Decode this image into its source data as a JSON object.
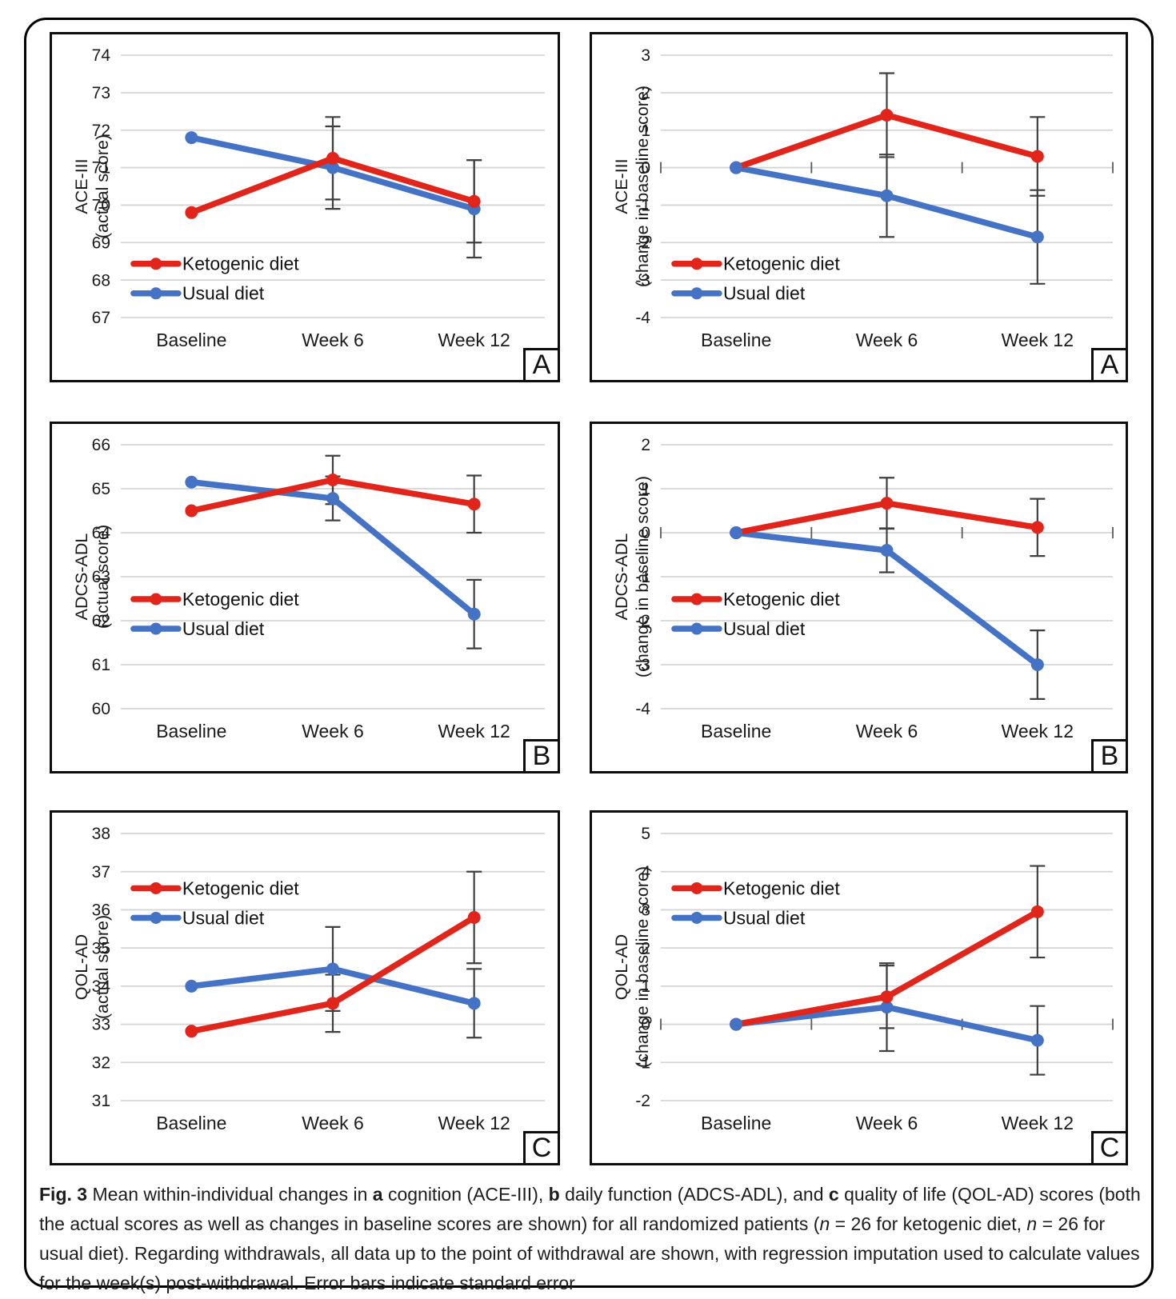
{
  "colors": {
    "ketogenic_red": "#e2251b",
    "usual_blue": "#4472c4",
    "gridline": "#d4d4d4",
    "error_bar": "#3f3f3f",
    "zero_tick": "#595959",
    "text": "#1a1a1a"
  },
  "caption": {
    "segments": [
      {
        "text": "Fig. 3",
        "style": "bold"
      },
      {
        "text": " Mean within-individual changes in ",
        "style": "regular"
      },
      {
        "text": "a",
        "style": "bold"
      },
      {
        "text": " cognition (ACE-III), ",
        "style": "regular"
      },
      {
        "text": "b",
        "style": "bold"
      },
      {
        "text": " daily function (ADCS-ADL), and ",
        "style": "regular"
      },
      {
        "text": "c",
        "style": "bold"
      },
      {
        "text": " quality of life (QOL-AD) scores (both the actual scores as well as changes in baseline scores are shown) for all randomized patients (",
        "style": "regular"
      },
      {
        "text": "n",
        "style": "italic"
      },
      {
        "text": " = 26 for ketogenic diet, ",
        "style": "regular"
      },
      {
        "text": "n",
        "style": "italic"
      },
      {
        "text": " = 26 for usual diet). Regarding withdrawals, all data up to the point of withdrawal are shown, with regression imputation used to calculate values for the week(s) post-withdrawal. Error bars indicate standard error",
        "style": "regular"
      }
    ]
  },
  "chart_data": [
    {
      "panel_label": "A",
      "type": "line",
      "ylabel_main": "ACE-III",
      "ylabel_sub": "(actual score)",
      "categories": [
        "Baseline",
        "Week 6",
        "Week 12"
      ],
      "ylim": [
        67,
        74
      ],
      "ytick_step": 1,
      "grid": true,
      "legend_position": "bottom-left",
      "zero_axis_ticks": false,
      "baseline_overlap": false,
      "series": [
        {
          "key": "ketogenic-diet",
          "name": "Ketogenic diet",
          "color_ref": "ketogenic_red",
          "values": [
            69.8,
            71.25,
            70.1
          ],
          "se": [
            null,
            1.1,
            1.1
          ]
        },
        {
          "key": "usual-diet",
          "name": "Usual diet",
          "color_ref": "usual_blue",
          "values": [
            71.8,
            71.0,
            69.9
          ],
          "se": [
            null,
            1.1,
            1.3
          ]
        }
      ]
    },
    {
      "panel_label": "A",
      "type": "line",
      "ylabel_main": "ACE-III",
      "ylabel_sub": "(change in baseline score)",
      "categories": [
        "Baseline",
        "Week 6",
        "Week 12"
      ],
      "ylim": [
        -4,
        3
      ],
      "ytick_step": 1,
      "grid": true,
      "legend_position": "bottom-left",
      "zero_axis_ticks": true,
      "baseline_overlap": true,
      "series": [
        {
          "key": "ketogenic-diet",
          "name": "Ketogenic diet",
          "color_ref": "ketogenic_red",
          "values": [
            0,
            1.4,
            0.3
          ],
          "se": [
            null,
            1.12,
            1.05
          ]
        },
        {
          "key": "usual-diet",
          "name": "Usual diet",
          "color_ref": "usual_blue",
          "values": [
            0,
            -0.75,
            -1.85
          ],
          "se": [
            null,
            1.1,
            1.25
          ]
        }
      ]
    },
    {
      "panel_label": "B",
      "type": "line",
      "ylabel_main": "ADCS-ADL",
      "ylabel_sub": "(actual score)",
      "categories": [
        "Baseline",
        "Week 6",
        "Week 12"
      ],
      "ylim": [
        60,
        66
      ],
      "ytick_step": 1,
      "grid": true,
      "legend_position": "middle-left",
      "zero_axis_ticks": false,
      "baseline_overlap": false,
      "series": [
        {
          "key": "ketogenic-diet",
          "name": "Ketogenic diet",
          "color_ref": "ketogenic_red",
          "values": [
            64.5,
            65.2,
            64.65
          ],
          "se": [
            null,
            0.55,
            0.65
          ]
        },
        {
          "key": "usual-diet",
          "name": "Usual diet",
          "color_ref": "usual_blue",
          "values": [
            65.15,
            64.78,
            62.15
          ],
          "se": [
            null,
            0.5,
            0.78
          ]
        }
      ]
    },
    {
      "panel_label": "B",
      "type": "line",
      "ylabel_main": "ADCS-ADL",
      "ylabel_sub": "(change in baseline score)",
      "categories": [
        "Baseline",
        "Week 6",
        "Week 12"
      ],
      "ylim": [
        -4,
        2
      ],
      "ytick_step": 1,
      "grid": true,
      "legend_position": "middle-left",
      "zero_axis_ticks": true,
      "baseline_overlap": true,
      "series": [
        {
          "key": "ketogenic-diet",
          "name": "Ketogenic diet",
          "color_ref": "ketogenic_red",
          "values": [
            0,
            0.67,
            0.12
          ],
          "se": [
            null,
            0.58,
            0.65
          ]
        },
        {
          "key": "usual-diet",
          "name": "Usual diet",
          "color_ref": "usual_blue",
          "values": [
            0,
            -0.4,
            -3.0
          ],
          "se": [
            null,
            0.5,
            0.78
          ]
        }
      ]
    },
    {
      "panel_label": "C",
      "type": "line",
      "ylabel_main": "QOL-AD",
      "ylabel_sub": "(actual score)",
      "categories": [
        "Baseline",
        "Week 6",
        "Week 12"
      ],
      "ylim": [
        31,
        38
      ],
      "ytick_step": 1,
      "grid": true,
      "legend_position": "top-left",
      "zero_axis_ticks": false,
      "baseline_overlap": false,
      "series": [
        {
          "key": "ketogenic-diet",
          "name": "Ketogenic diet",
          "color_ref": "ketogenic_red",
          "values": [
            32.82,
            33.55,
            35.8
          ],
          "se": [
            null,
            0.75,
            1.2
          ]
        },
        {
          "key": "usual-diet",
          "name": "Usual diet",
          "color_ref": "usual_blue",
          "values": [
            34.0,
            34.45,
            33.55
          ],
          "se": [
            null,
            1.1,
            0.9
          ]
        }
      ]
    },
    {
      "panel_label": "C",
      "type": "line",
      "ylabel_main": "QOL-AD",
      "ylabel_sub": "(change in baseline score)",
      "categories": [
        "Baseline",
        "Week 6",
        "Week 12"
      ],
      "ylim": [
        -2,
        5
      ],
      "ytick_step": 1,
      "grid": true,
      "legend_position": "top-left",
      "zero_axis_ticks": true,
      "baseline_overlap": true,
      "series": [
        {
          "key": "ketogenic-diet",
          "name": "Ketogenic diet",
          "color_ref": "ketogenic_red",
          "values": [
            0,
            0.72,
            2.95
          ],
          "se": [
            null,
            0.82,
            1.2
          ]
        },
        {
          "key": "usual-diet",
          "name": "Usual diet",
          "color_ref": "usual_blue",
          "values": [
            0,
            0.45,
            -0.42
          ],
          "se": [
            null,
            1.15,
            0.9
          ]
        }
      ]
    }
  ]
}
